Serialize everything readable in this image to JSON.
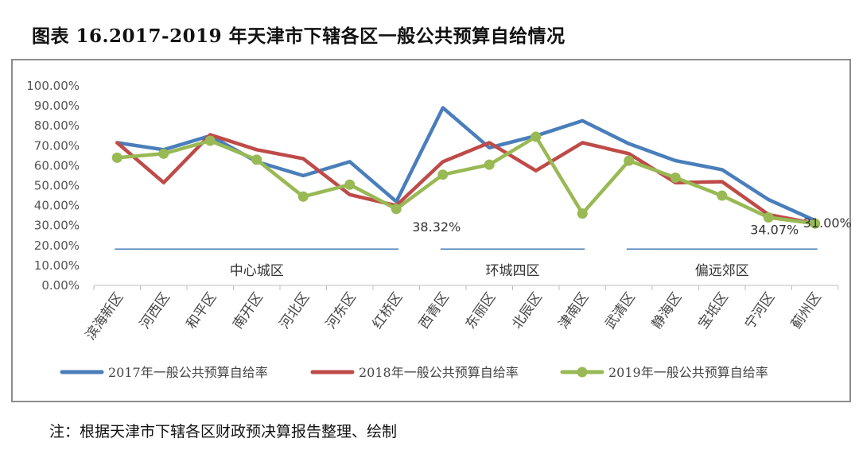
{
  "title": "图表 16.2017-2019 年天津市下辖各区一般公共预算自给情况",
  "note": "注：根据天津市下辖各区财政预决算报告整理、绘制",
  "chart_data": {
    "type": "line",
    "categories": [
      "滨海新区",
      "河西区",
      "和平区",
      "南开区",
      "河北区",
      "河东区",
      "红桥区",
      "西青区",
      "东丽区",
      "北辰区",
      "津南区",
      "武清区",
      "静海区",
      "宝坻区",
      "宁河区",
      "蓟州区"
    ],
    "ylim": [
      0,
      100
    ],
    "yticks": [
      "0.00%",
      "10.00%",
      "20.00%",
      "30.00%",
      "40.00%",
      "50.00%",
      "60.00%",
      "70.00%",
      "80.00%",
      "90.00%",
      "100.00%"
    ],
    "grid": false,
    "legend_position": "bottom",
    "series": [
      {
        "name": "2017年一般公共预算自给率",
        "color": "#4a7ebb",
        "marker": false,
        "values": [
          71.5,
          68,
          75,
          62,
          55,
          62,
          42,
          89,
          69,
          75,
          82.5,
          71,
          62.5,
          58,
          43,
          32.5
        ]
      },
      {
        "name": "2018年一般公共预算自给率",
        "color": "#be4b48",
        "marker": false,
        "values": [
          71.5,
          51.5,
          75.5,
          68,
          63.5,
          45.5,
          40,
          62,
          71.5,
          57.5,
          71.5,
          66,
          51.5,
          52,
          35.5,
          31
        ]
      },
      {
        "name": "2019年一般公共预算自给率",
        "color": "#98b954",
        "marker": true,
        "values": [
          64,
          66,
          72.5,
          63,
          44.5,
          50.5,
          38.32,
          55.5,
          60.5,
          74.5,
          36,
          62.5,
          54,
          45,
          34.07,
          31
        ]
      }
    ],
    "groups": [
      {
        "label": "中心城区",
        "start": 0,
        "end": 6
      },
      {
        "label": "环城四区",
        "start": 7,
        "end": 10
      },
      {
        "label": "偏远郊区",
        "start": 11,
        "end": 15
      }
    ],
    "annotations": [
      {
        "text": "38.32%",
        "series": 2,
        "index": 6
      },
      {
        "text": "34.07%",
        "series": 2,
        "index": 14
      },
      {
        "text": "31.00%",
        "series": 2,
        "index": 15
      }
    ]
  }
}
